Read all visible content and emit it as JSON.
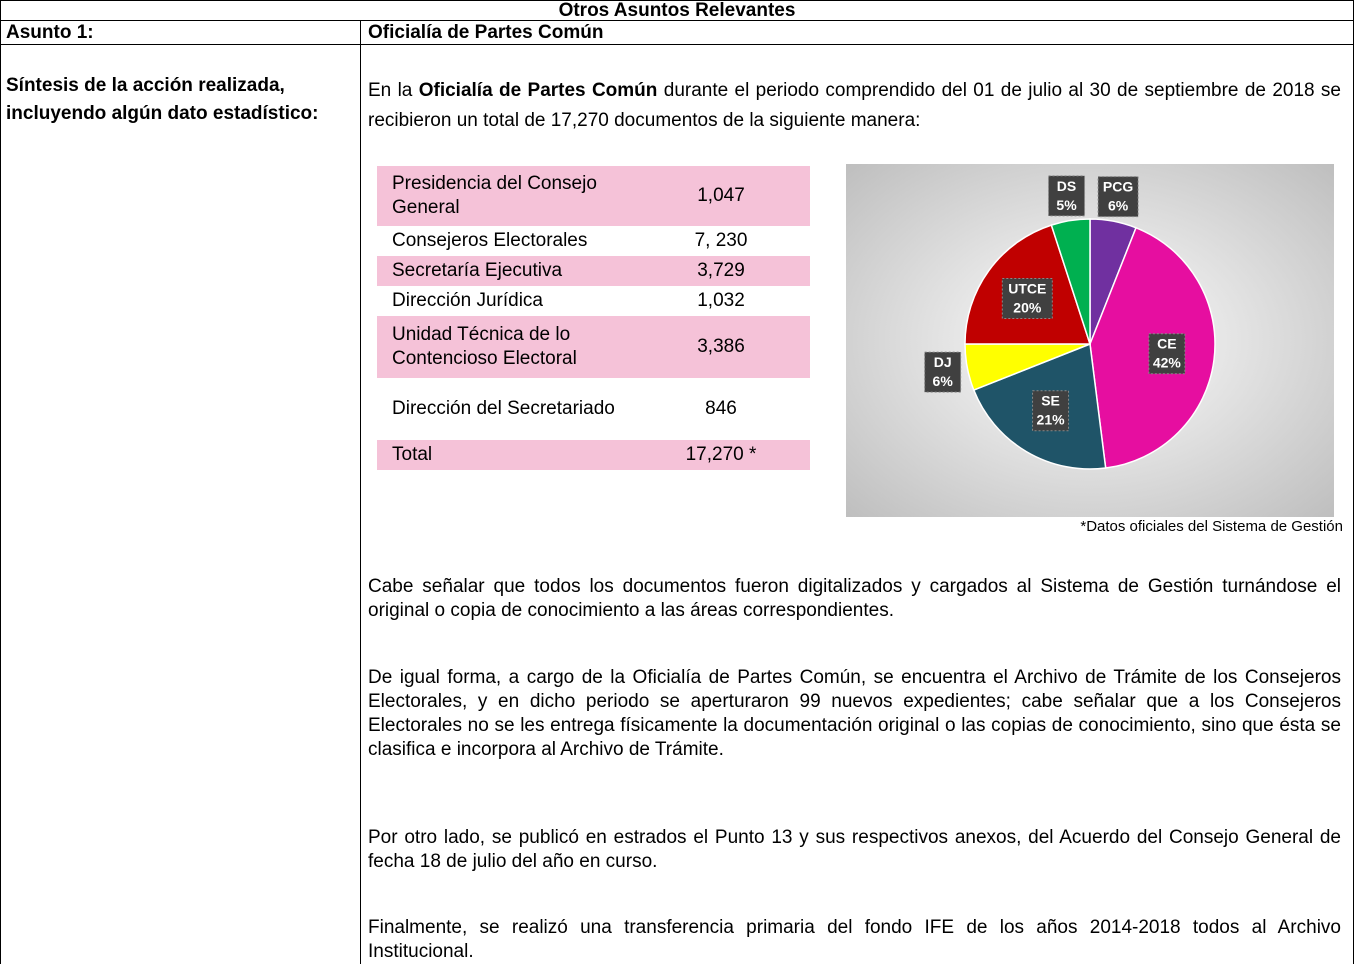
{
  "table": {
    "title": "Otros Asuntos Relevantes",
    "rows": [
      [
        "Asunto 1:",
        "Oficialía de Partes Común"
      ],
      [
        "Síntesis de la acción realizada, incluyendo algún dato estadístico:"
      ]
    ],
    "intro": [
      "En la ",
      "Oficialía de Partes Común",
      " durante el periodo comprendido del 01 de julio al 30 de septiembre de 2018 se recibieron un total de 17,270 documentos de la siguiente manera:"
    ],
    "breakdown": [
      [
        "Presidencia del Consejo General",
        "1,047"
      ],
      [
        "Consejeros Electorales",
        "7, 230"
      ],
      [
        "Secretaría Ejecutiva",
        "3,729"
      ],
      [
        "Dirección Jurídica",
        "1,032"
      ],
      [
        "Unidad Técnica de lo Contencioso Electoral",
        "3,386"
      ],
      [
        "Dirección del Secretariado",
        "846"
      ],
      [
        "Total",
        "17,270 *"
      ]
    ],
    "footnote": "*Datos oficiales del Sistema de Gestión",
    "paragraphs": [
      "Cabe señalar que todos los documentos fueron digitalizados y cargados al Sistema de Gestión turnándose el original o copia de conocimiento a las áreas correspondientes.",
      "De igual forma, a cargo de la Oficialía de Partes Común, se encuentra el Archivo de Trámite de los Consejeros Electorales, y en dicho periodo se aperturaron 99 nuevos expedientes; cabe señalar que a los Consejeros Electorales no se les entrega físicamente la documentación original o las copias de conocimiento, sino que ésta se clasifica e incorpora al Archivo de Trámite.",
      "Por otro lado, se publicó en estrados el Punto 13 y sus respectivos anexos, del Acuerdo del Consejo General de fecha 18 de julio del año en curso.",
      "Finalmente, se realizó una transferencia primaria del fondo IFE de los años 2014-2018 todos al Archivo Institucional."
    ]
  },
  "chart_data": {
    "type": "pie",
    "categories": [
      "PCG",
      "CE",
      "SE",
      "DJ",
      "UTCE",
      "DS"
    ],
    "values": [
      6,
      42,
      21,
      6,
      20,
      5
    ],
    "value_labels": [
      "6%",
      "42%",
      "21%",
      "6%",
      "20%",
      "5%"
    ],
    "colors": [
      "#7030a0",
      "#e60ea0",
      "#1f5468",
      "#ffff00",
      "#c00000",
      "#00b050"
    ]
  }
}
